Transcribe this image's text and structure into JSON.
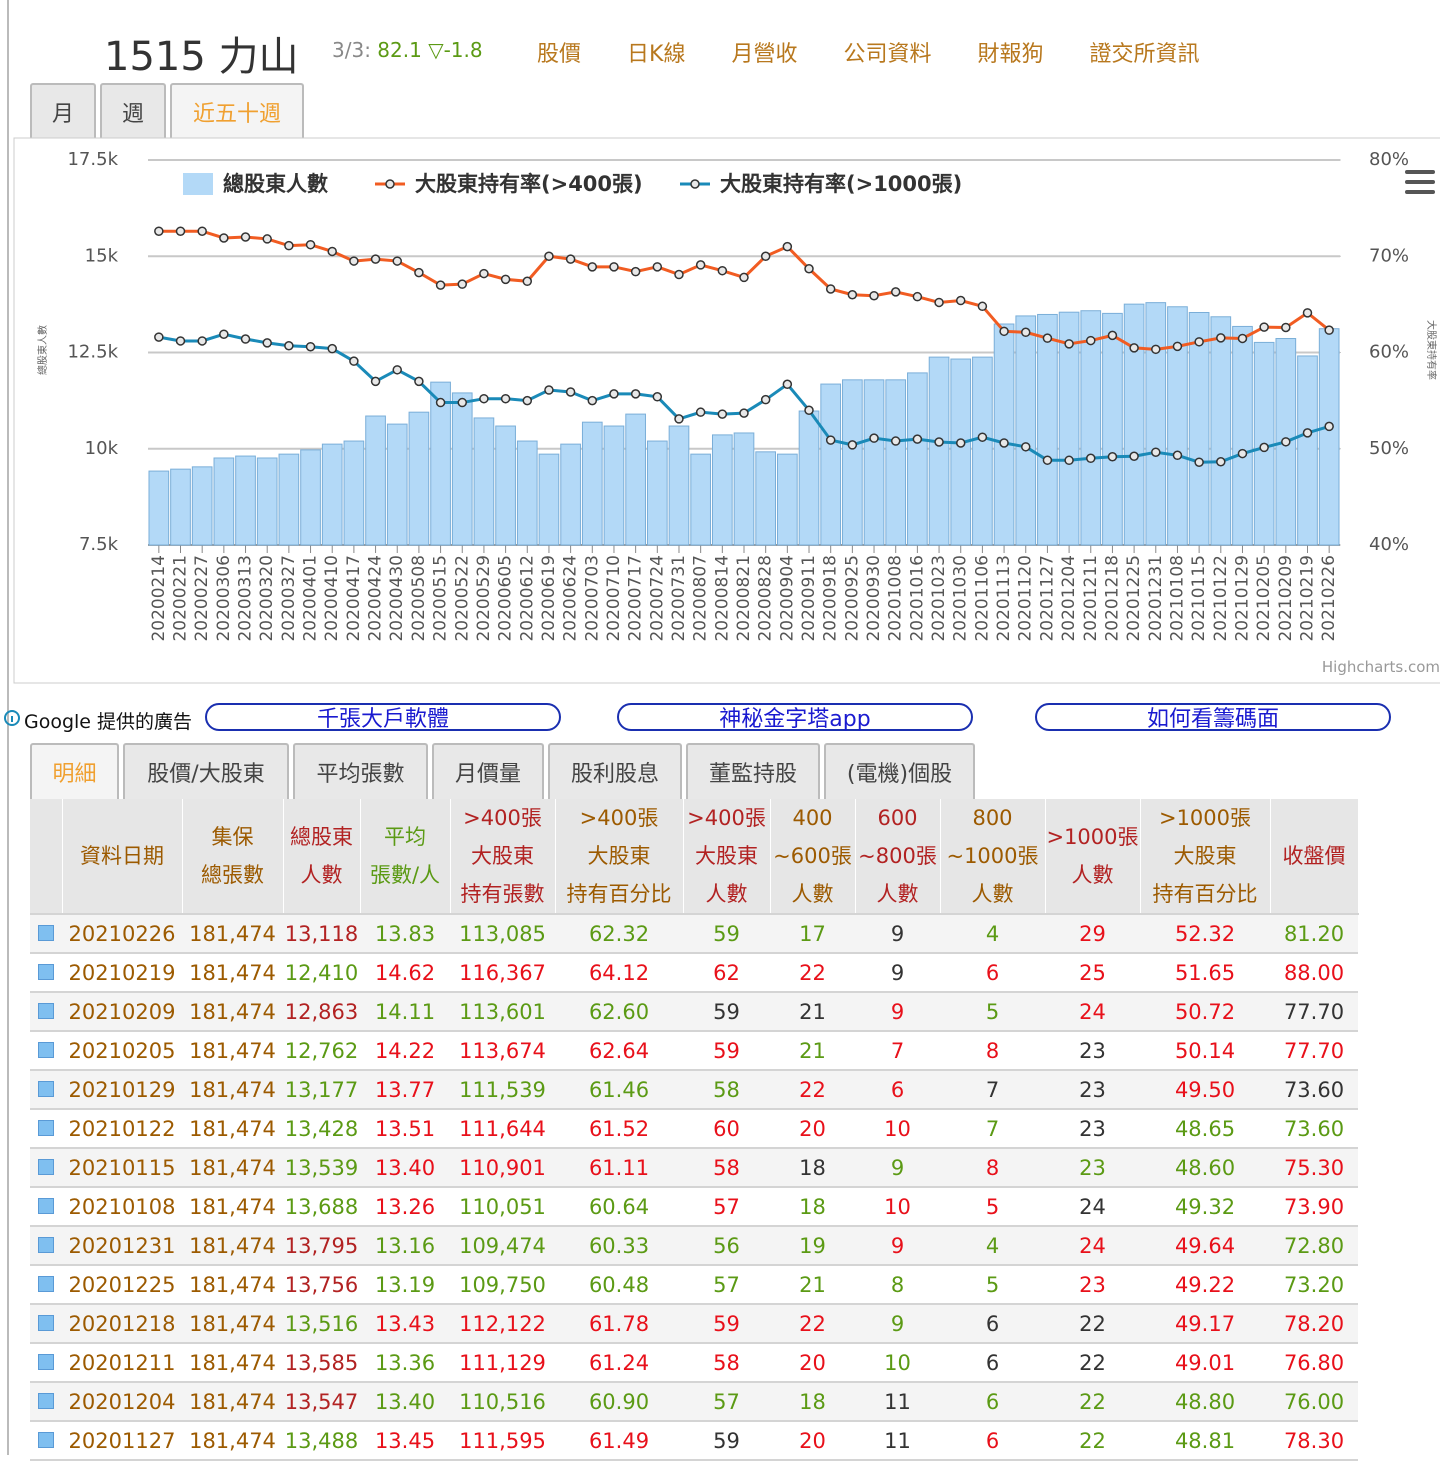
{
  "header": {
    "title": "1515 力山",
    "quote": {
      "date": "3/3:",
      "price": "82.1",
      "change": "▽-1.8"
    },
    "nav": [
      "股價",
      "日K線",
      "月營收",
      "公司資料",
      "財報狗",
      "證交所資訊"
    ]
  },
  "period_tabs": {
    "items": [
      "月",
      "週",
      "近五十週"
    ],
    "active": 2
  },
  "chart_data": {
    "type": "combo",
    "y_label": "總股東人數",
    "y2_label": "大股東持有率",
    "credits": "Highcharts.com",
    "grid": true,
    "categories": [
      "20200214",
      "20200221",
      "20200227",
      "20200306",
      "20200313",
      "20200320",
      "20200327",
      "20200401",
      "20200410",
      "20200417",
      "20200424",
      "20200430",
      "20200508",
      "20200515",
      "20200522",
      "20200529",
      "20200605",
      "20200612",
      "20200619",
      "20200624",
      "20200703",
      "20200710",
      "20200717",
      "20200724",
      "20200731",
      "20200807",
      "20200814",
      "20200821",
      "20200828",
      "20200904",
      "20200911",
      "20200918",
      "20200925",
      "20200930",
      "20201008",
      "20201016",
      "20201023",
      "20201030",
      "20201106",
      "20201113",
      "20201120",
      "20201127",
      "20201204",
      "20201211",
      "20201218",
      "20201225",
      "20201231",
      "20210108",
      "20210115",
      "20210122",
      "20210129",
      "20210205",
      "20210209",
      "20210219",
      "20210226"
    ],
    "ylim": [
      7500,
      17500
    ],
    "yticks": [
      {
        "value": 7500,
        "label": "7.5k"
      },
      {
        "value": 10000,
        "label": "10k"
      },
      {
        "value": 12500,
        "label": "12.5k"
      },
      {
        "value": 15000,
        "label": "15k"
      },
      {
        "value": 17500,
        "label": "17.5k"
      }
    ],
    "y2lim": [
      40,
      80
    ],
    "y2ticks": [
      {
        "value": 40,
        "label": "40%"
      },
      {
        "value": 50,
        "label": "50%"
      },
      {
        "value": 60,
        "label": "60%"
      },
      {
        "value": 70,
        "label": "70%"
      },
      {
        "value": 80,
        "label": "80%"
      }
    ],
    "series": [
      {
        "name": "總股東人數",
        "type": "bar",
        "color": "#b3d9f7",
        "values": [
          9420,
          9470,
          9530,
          9760,
          9810,
          9760,
          9860,
          9970,
          10120,
          10200,
          10850,
          10640,
          10950,
          11730,
          11450,
          10800,
          10590,
          10200,
          9860,
          10120,
          10690,
          10590,
          10900,
          10200,
          10590,
          9860,
          10360,
          10410,
          9920,
          9860,
          10980,
          11680,
          11790,
          11790,
          11790,
          11970,
          12380,
          12330,
          12380,
          13240,
          13450,
          13488,
          13547,
          13585,
          13516,
          13756,
          13795,
          13688,
          13539,
          13428,
          13177,
          12762,
          12863,
          12410,
          13118
        ]
      },
      {
        "name": "大股東持有率(>400張)",
        "type": "line",
        "axis": "y2",
        "color": "#f15c22",
        "values": [
          72.6,
          72.6,
          72.6,
          71.9,
          72.0,
          71.8,
          71.1,
          71.2,
          70.5,
          69.5,
          69.7,
          69.5,
          68.3,
          67.0,
          67.1,
          68.2,
          67.6,
          67.4,
          70.0,
          69.7,
          68.9,
          68.9,
          68.4,
          68.9,
          68.1,
          69.1,
          68.5,
          67.8,
          70.0,
          71.0,
          68.7,
          66.6,
          66.0,
          65.9,
          66.3,
          65.8,
          65.2,
          65.4,
          64.8,
          62.2,
          62.1,
          61.49,
          60.9,
          61.24,
          61.78,
          60.48,
          60.33,
          60.64,
          61.11,
          61.52,
          61.46,
          62.64,
          62.6,
          64.12,
          62.32
        ]
      },
      {
        "name": "大股東持有率(>1000張)",
        "type": "line",
        "axis": "y2",
        "color": "#1a8ab8",
        "values": [
          61.6,
          61.2,
          61.2,
          61.9,
          61.4,
          61.0,
          60.7,
          60.6,
          60.4,
          59.1,
          57.0,
          58.2,
          57.0,
          54.8,
          54.8,
          55.2,
          55.2,
          55.0,
          56.1,
          55.9,
          55.0,
          55.7,
          55.7,
          55.4,
          53.1,
          53.8,
          53.6,
          53.7,
          55.1,
          56.7,
          54.0,
          50.9,
          50.4,
          51.1,
          50.8,
          51.0,
          50.7,
          50.6,
          51.2,
          50.6,
          50.2,
          48.81,
          48.8,
          49.01,
          49.17,
          49.22,
          49.64,
          49.32,
          48.6,
          48.65,
          49.5,
          50.14,
          50.72,
          51.65,
          52.32
        ]
      }
    ]
  },
  "ads": {
    "label": "Google 提供的廣告",
    "links": [
      "千張大戶軟體",
      "神秘金字塔app",
      "如何看籌碼面"
    ]
  },
  "table_tabs": {
    "items": [
      "明細",
      "股價/大股東",
      "平均張數",
      "月價量",
      "股利股息",
      "董監持股",
      "(電機)個股"
    ],
    "active": 0
  },
  "palette": {
    "o": "#9c5a00",
    "d": "#b22222",
    "r": "#e8101a",
    "g": "#5b9a14",
    "k": "#333333"
  },
  "table": {
    "header": [
      [
        "資料日期"
      ],
      [
        "集保",
        "總張數"
      ],
      [
        "總股東",
        "人數"
      ],
      [
        "平均",
        "張數/人"
      ],
      [
        ">400張",
        "大股東",
        "持有張數"
      ],
      [
        ">400張",
        "大股東",
        "持有百分比"
      ],
      [
        ">400張",
        "大股東",
        "人數"
      ],
      [
        "400",
        "~600張",
        "人數"
      ],
      [
        "600",
        "~800張",
        "人數"
      ],
      [
        "800",
        "~1000張",
        "人數"
      ],
      [
        ">1000張",
        "人數"
      ],
      [
        ">1000張",
        "大股東",
        "持有百分比"
      ],
      [
        "收盤價"
      ]
    ],
    "header_colors": [
      "o",
      "o",
      "d",
      "g",
      "d",
      "o",
      "d",
      "o",
      "d",
      "o",
      "d",
      "o",
      "d"
    ],
    "rows": [
      [
        "20210226",
        "181,474",
        "13,118",
        "13.83",
        "113,085",
        "62.32",
        "59",
        "17",
        "9",
        "4",
        "29",
        "52.32",
        "81.20"
      ],
      [
        "20210219",
        "181,474",
        "12,410",
        "14.62",
        "116,367",
        "64.12",
        "62",
        "22",
        "9",
        "6",
        "25",
        "51.65",
        "88.00"
      ],
      [
        "20210209",
        "181,474",
        "12,863",
        "14.11",
        "113,601",
        "62.60",
        "59",
        "21",
        "9",
        "5",
        "24",
        "50.72",
        "77.70"
      ],
      [
        "20210205",
        "181,474",
        "12,762",
        "14.22",
        "113,674",
        "62.64",
        "59",
        "21",
        "7",
        "8",
        "23",
        "50.14",
        "77.70"
      ],
      [
        "20210129",
        "181,474",
        "13,177",
        "13.77",
        "111,539",
        "61.46",
        "58",
        "22",
        "6",
        "7",
        "23",
        "49.50",
        "73.60"
      ],
      [
        "20210122",
        "181,474",
        "13,428",
        "13.51",
        "111,644",
        "61.52",
        "60",
        "20",
        "10",
        "7",
        "23",
        "48.65",
        "73.60"
      ],
      [
        "20210115",
        "181,474",
        "13,539",
        "13.40",
        "110,901",
        "61.11",
        "58",
        "18",
        "9",
        "8",
        "23",
        "48.60",
        "75.30"
      ],
      [
        "20210108",
        "181,474",
        "13,688",
        "13.26",
        "110,051",
        "60.64",
        "57",
        "18",
        "10",
        "5",
        "24",
        "49.32",
        "73.90"
      ],
      [
        "20201231",
        "181,474",
        "13,795",
        "13.16",
        "109,474",
        "60.33",
        "56",
        "19",
        "9",
        "4",
        "24",
        "49.64",
        "72.80"
      ],
      [
        "20201225",
        "181,474",
        "13,756",
        "13.19",
        "109,750",
        "60.48",
        "57",
        "21",
        "8",
        "5",
        "23",
        "49.22",
        "73.20"
      ],
      [
        "20201218",
        "181,474",
        "13,516",
        "13.43",
        "112,122",
        "61.78",
        "59",
        "22",
        "9",
        "6",
        "22",
        "49.17",
        "78.20"
      ],
      [
        "20201211",
        "181,474",
        "13,585",
        "13.36",
        "111,129",
        "61.24",
        "58",
        "20",
        "10",
        "6",
        "22",
        "49.01",
        "76.80"
      ],
      [
        "20201204",
        "181,474",
        "13,547",
        "13.40",
        "110,516",
        "60.90",
        "57",
        "18",
        "11",
        "6",
        "22",
        "48.80",
        "76.00"
      ],
      [
        "20201127",
        "181,474",
        "13,488",
        "13.45",
        "111,595",
        "61.49",
        "59",
        "20",
        "11",
        "6",
        "22",
        "48.81",
        "78.30"
      ]
    ],
    "row_colors": [
      [
        "o",
        "o",
        "d",
        "g",
        "g",
        "g",
        "g",
        "g",
        "k",
        "g",
        "r",
        "r",
        "g"
      ],
      [
        "o",
        "o",
        "g",
        "r",
        "r",
        "r",
        "r",
        "r",
        "k",
        "r",
        "r",
        "r",
        "r"
      ],
      [
        "o",
        "o",
        "d",
        "g",
        "g",
        "g",
        "k",
        "k",
        "r",
        "g",
        "r",
        "r",
        "k"
      ],
      [
        "o",
        "o",
        "g",
        "r",
        "r",
        "r",
        "r",
        "g",
        "r",
        "r",
        "k",
        "r",
        "r"
      ],
      [
        "o",
        "o",
        "g",
        "r",
        "g",
        "g",
        "g",
        "r",
        "r",
        "k",
        "k",
        "r",
        "k"
      ],
      [
        "o",
        "o",
        "g",
        "r",
        "r",
        "r",
        "r",
        "r",
        "r",
        "g",
        "k",
        "g",
        "g"
      ],
      [
        "o",
        "o",
        "g",
        "r",
        "r",
        "r",
        "r",
        "k",
        "g",
        "r",
        "g",
        "g",
        "r"
      ],
      [
        "o",
        "o",
        "g",
        "r",
        "g",
        "g",
        "r",
        "g",
        "r",
        "r",
        "k",
        "g",
        "r"
      ],
      [
        "o",
        "o",
        "d",
        "g",
        "g",
        "g",
        "g",
        "g",
        "r",
        "g",
        "r",
        "r",
        "g"
      ],
      [
        "o",
        "o",
        "d",
        "g",
        "g",
        "g",
        "g",
        "g",
        "g",
        "g",
        "r",
        "r",
        "g"
      ],
      [
        "o",
        "o",
        "g",
        "r",
        "r",
        "r",
        "r",
        "r",
        "g",
        "k",
        "k",
        "r",
        "r"
      ],
      [
        "o",
        "o",
        "d",
        "g",
        "r",
        "r",
        "r",
        "r",
        "g",
        "k",
        "k",
        "r",
        "r"
      ],
      [
        "o",
        "o",
        "d",
        "g",
        "g",
        "g",
        "g",
        "g",
        "k",
        "g",
        "g",
        "g",
        "g"
      ],
      [
        "o",
        "o",
        "g",
        "r",
        "r",
        "r",
        "k",
        "r",
        "k",
        "r",
        "g",
        "g",
        "r"
      ]
    ]
  }
}
